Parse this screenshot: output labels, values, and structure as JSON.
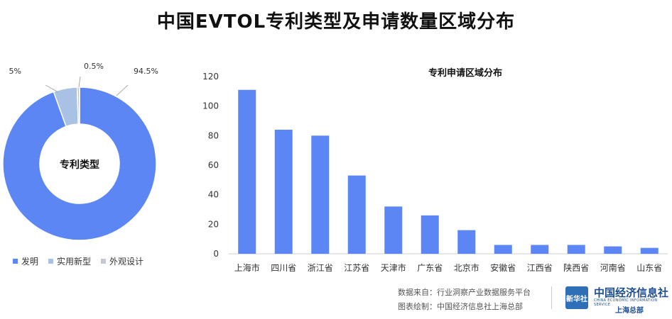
{
  "title": "中国EVTOL专利类型及申请数量区域分布",
  "colors": {
    "bar": "#5b86f3",
    "invention": "#5b86f3",
    "utility": "#a9c1e4",
    "design": "#c4c8cf"
  },
  "chart_data": [
    {
      "type": "pie",
      "title": "专利类型",
      "categories": [
        "发明",
        "实用新型",
        "外观设计"
      ],
      "values": [
        94.5,
        5,
        0.5
      ],
      "labels": [
        "94.5%",
        "5%",
        "0.5%"
      ],
      "legend": "bottom"
    },
    {
      "type": "bar",
      "title": "专利申请区域分布",
      "categories": [
        "上海市",
        "四川省",
        "浙江省",
        "江苏省",
        "天津市",
        "广东省",
        "北京市",
        "安徽省",
        "江西省",
        "陕西省",
        "河南省",
        "山东省"
      ],
      "values": [
        111,
        84,
        80,
        53,
        32,
        26,
        16,
        6,
        6,
        6,
        5,
        4
      ],
      "ylim": [
        0,
        120
      ],
      "yticks": [
        0,
        20,
        40,
        60,
        80,
        100,
        120
      ],
      "grid": false
    }
  ],
  "footer": {
    "source": "数据来自：行业洞察产业数据服务平台",
    "producer": "图表绘制：中国经济信息社上海总部",
    "logo_badge": "新华社",
    "logo_main": "中国经济信息社",
    "logo_en": "CHINA ECONOMIC INFORMATION SERVICE",
    "logo_sub": "上海总部"
  }
}
